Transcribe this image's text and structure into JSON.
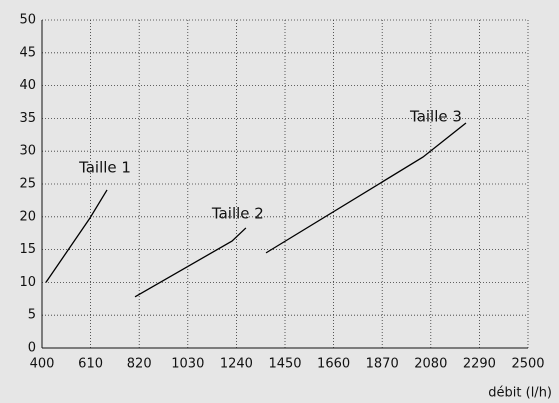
{
  "chart_data": {
    "type": "line",
    "xlabel": "débit (l/h)",
    "xlim": [
      400,
      2500
    ],
    "xticks": [
      400,
      610,
      820,
      1030,
      1240,
      1450,
      1660,
      1870,
      2080,
      2290,
      2500
    ],
    "ylim": [
      0,
      50
    ],
    "yticks": [
      0,
      5,
      10,
      15,
      20,
      25,
      30,
      35,
      40,
      45,
      50
    ],
    "grid": true,
    "series": [
      {
        "name": "Taille 1",
        "color": "#000000",
        "x": [
          417,
          607,
          681
        ],
        "values": [
          10,
          19.8,
          24.1
        ]
      },
      {
        "name": "Taille 2",
        "color": "#000000",
        "x": [
          802,
          1221,
          1281
        ],
        "values": [
          7.8,
          16.3,
          18.3
        ]
      },
      {
        "name": "Taille 3",
        "color": "#000000",
        "x": [
          1368,
          2046,
          2232
        ],
        "values": [
          14.5,
          29.1,
          34.3
        ]
      }
    ]
  }
}
